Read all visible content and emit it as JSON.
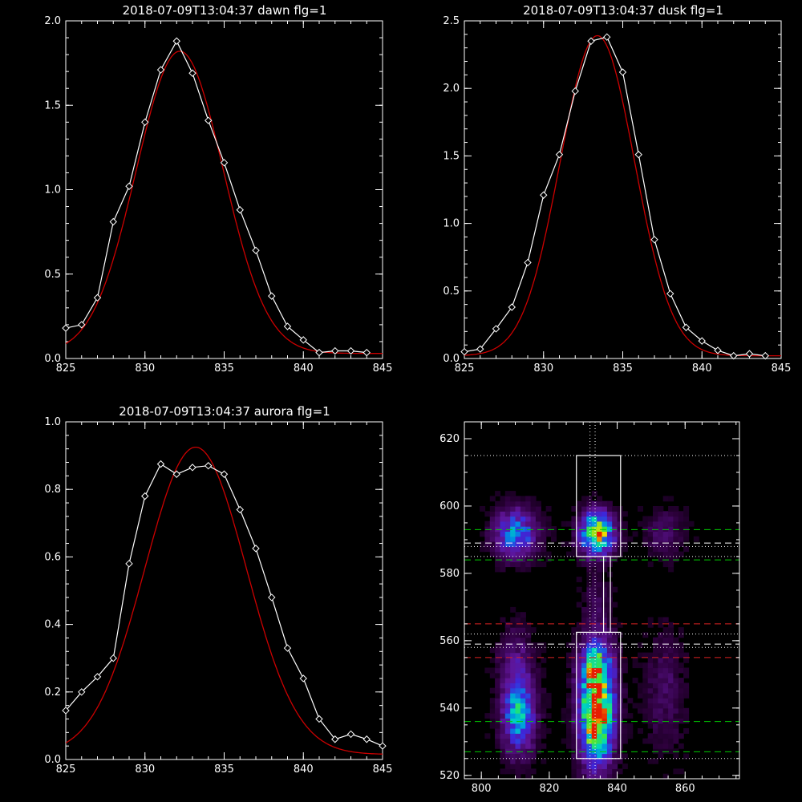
{
  "colors": {
    "background": "#000000",
    "axes": "#ffffff",
    "observed": "#ffffff",
    "fit": "#cc0000",
    "guide_green": "#00cc00",
    "guide_red": "#dd2222"
  },
  "chart_data": [
    {
      "type": "line",
      "title": "2018-07-09T13:04:37 dawn flg=1",
      "xlim": [
        825,
        845
      ],
      "ylim": [
        0,
        2.0
      ],
      "xticks": [
        825,
        830,
        835,
        840,
        845
      ],
      "yticks": [
        0.0,
        0.5,
        1.0,
        1.5,
        2.0
      ],
      "ytick_labels": [
        "0.0",
        "0.5",
        "1.0",
        "1.5",
        "2.0"
      ],
      "x": [
        825,
        826,
        827,
        828,
        829,
        830,
        831,
        832,
        833,
        834,
        835,
        836,
        837,
        838,
        839,
        840,
        841,
        842,
        843,
        844
      ],
      "series": [
        {
          "style": "observed",
          "values": [
            0.18,
            0.2,
            0.36,
            0.81,
            1.02,
            1.4,
            1.71,
            1.88,
            1.69,
            1.41,
            1.16,
            0.88,
            0.64,
            0.37,
            0.19,
            0.11,
            0.035,
            0.045,
            0.045,
            0.035
          ]
        },
        {
          "style": "fit",
          "gaussian": {
            "amp": 1.79,
            "center": 832.2,
            "sigma": 2.75,
            "base": 0.03
          }
        }
      ]
    },
    {
      "type": "line",
      "title": "2018-07-09T13:04:37 dusk flg=1",
      "xlim": [
        825,
        845
      ],
      "ylim": [
        0,
        2.5
      ],
      "xticks": [
        825,
        830,
        835,
        840,
        845
      ],
      "yticks": [
        0.0,
        0.5,
        1.0,
        1.5,
        2.0,
        2.5
      ],
      "ytick_labels": [
        "0.0",
        "0.5",
        "1.0",
        "1.5",
        "2.0",
        "2.5"
      ],
      "x": [
        825,
        826,
        827,
        828,
        829,
        830,
        831,
        832,
        833,
        834,
        835,
        836,
        837,
        838,
        839,
        840,
        841,
        842,
        843,
        844
      ],
      "series": [
        {
          "style": "observed",
          "values": [
            0.05,
            0.07,
            0.22,
            0.38,
            0.71,
            1.21,
            1.51,
            1.98,
            2.35,
            2.38,
            2.12,
            1.51,
            0.88,
            0.48,
            0.23,
            0.13,
            0.06,
            0.02,
            0.035,
            0.02
          ]
        },
        {
          "style": "fit",
          "gaussian": {
            "amp": 2.37,
            "center": 833.4,
            "sigma": 2.35,
            "base": 0.02
          }
        }
      ]
    },
    {
      "type": "line",
      "title": "2018-07-09T13:04:37 aurora flg=1",
      "xlim": [
        825,
        845
      ],
      "ylim": [
        0,
        1.0
      ],
      "xticks": [
        825,
        830,
        835,
        840,
        845
      ],
      "yticks": [
        0.0,
        0.2,
        0.4,
        0.6,
        0.8,
        1.0
      ],
      "ytick_labels": [
        "0.0",
        "0.2",
        "0.4",
        "0.6",
        "0.8",
        "1.0"
      ],
      "x": [
        825,
        826,
        827,
        828,
        829,
        830,
        831,
        832,
        833,
        834,
        835,
        836,
        837,
        838,
        839,
        840,
        841,
        842,
        843,
        844,
        845
      ],
      "series": [
        {
          "style": "observed",
          "values": [
            0.145,
            0.2,
            0.245,
            0.3,
            0.58,
            0.78,
            0.875,
            0.845,
            0.865,
            0.87,
            0.845,
            0.74,
            0.625,
            0.48,
            0.33,
            0.24,
            0.12,
            0.06,
            0.075,
            0.06,
            0.04
          ]
        },
        {
          "style": "fit",
          "gaussian": {
            "amp": 0.91,
            "center": 833.2,
            "sigma": 3.2,
            "base": 0.015
          }
        }
      ]
    },
    {
      "type": "heatmap",
      "title": "",
      "xlim": [
        795,
        876
      ],
      "ylim": [
        519,
        625
      ],
      "xticks": [
        800,
        820,
        840,
        860
      ],
      "yticks": [
        520,
        540,
        560,
        580,
        600,
        620
      ],
      "ytick_labels": [
        "520",
        "540",
        "560",
        "580",
        "600",
        "620"
      ],
      "blobs": [
        {
          "x": 810,
          "y": 592,
          "sx": 4.5,
          "sy": 5,
          "amp": 0.55
        },
        {
          "x": 834,
          "y": 592,
          "sx": 3.5,
          "sy": 4.5,
          "amp": 0.9
        },
        {
          "x": 834,
          "y": 537,
          "sx": 3.5,
          "sy": 10,
          "amp": 1.0
        },
        {
          "x": 834,
          "y": 552,
          "sx": 3.5,
          "sy": 7,
          "amp": 0.55
        },
        {
          "x": 811,
          "y": 538,
          "sx": 3.5,
          "sy": 8,
          "amp": 0.6
        },
        {
          "x": 810,
          "y": 555,
          "sx": 3.5,
          "sy": 7,
          "amp": 0.2
        },
        {
          "x": 854,
          "y": 592,
          "sx": 4,
          "sy": 5,
          "amp": 0.18
        },
        {
          "x": 854,
          "y": 545,
          "sx": 4,
          "sy": 12,
          "amp": 0.16
        },
        {
          "x": 834,
          "y": 572,
          "sx": 3,
          "sy": 6,
          "amp": 0.12
        }
      ],
      "boxes": [
        {
          "x0": 828,
          "x1": 841,
          "y0": 585,
          "y1": 615
        },
        {
          "x0": 828,
          "x1": 841,
          "y0": 525,
          "y1": 562.5
        },
        {
          "x0": 836,
          "x1": 838,
          "y0": 562.5,
          "y1": 585
        }
      ],
      "dotted_h": [
        615,
        588,
        585,
        562,
        558,
        525
      ],
      "dotted_v": [
        832,
        833.5
      ],
      "dashed_green": [
        593,
        584,
        536,
        527
      ],
      "dashed_white": [
        589,
        559
      ],
      "dashed_red": [
        565,
        555
      ]
    }
  ]
}
